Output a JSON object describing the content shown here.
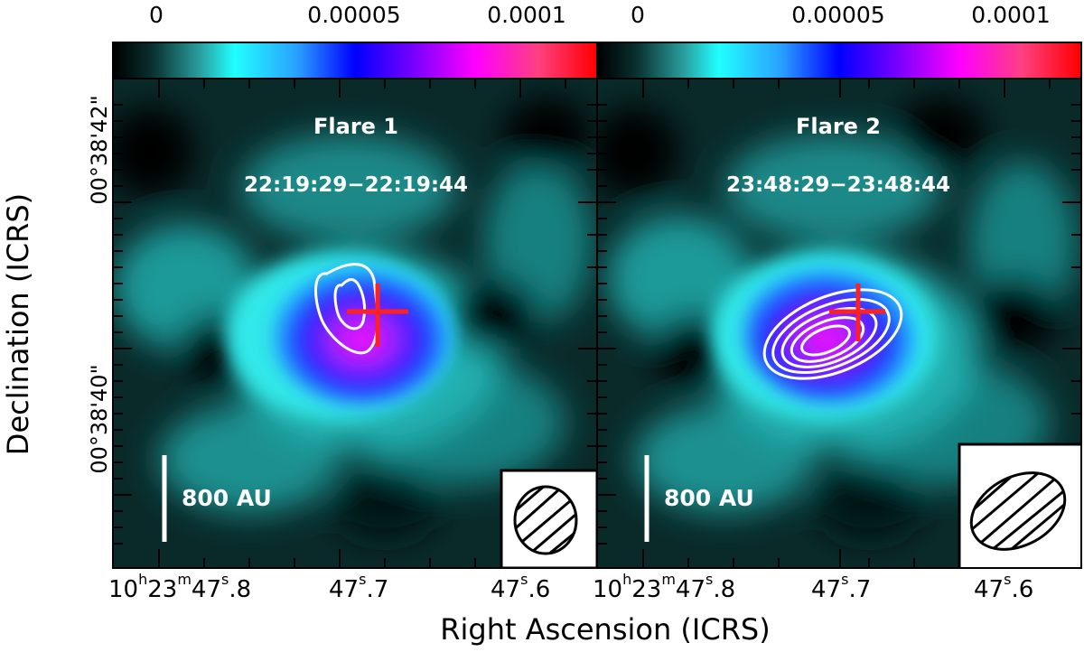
{
  "colorbar": {
    "ticks": [
      "0",
      "0.00005",
      "0.0001"
    ]
  },
  "panels": [
    {
      "title": "Flare 1",
      "time_range": "22:19:29−22:19:44",
      "scalebar_label": "800 AU"
    },
    {
      "title": "Flare 2",
      "time_range": "23:48:29−23:48:44",
      "scalebar_label": "800 AU"
    }
  ],
  "axes": {
    "ylabel": "Declination (ICRS)",
    "xlabel": "Right Ascension (ICRS)",
    "yticks": [
      "00°38'42\"",
      "00°38'40\""
    ],
    "xticks": [
      {
        "h": "10",
        "m": "23",
        "s": "47",
        "frac": ".8"
      },
      {
        "s": "47",
        "frac": ".7"
      },
      {
        "s": "47",
        "frac": ".6"
      }
    ]
  },
  "colors": {
    "cross": "#ff2020",
    "contour": "#ffffff",
    "background": "#000000"
  }
}
